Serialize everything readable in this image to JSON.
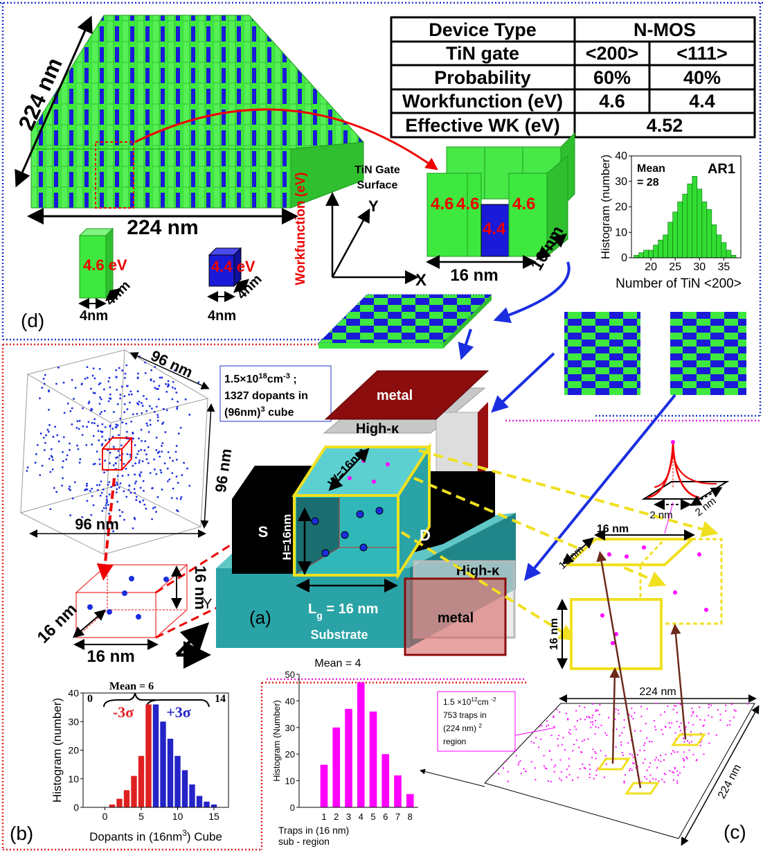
{
  "table": {
    "rows": [
      [
        "Device Type",
        "N-MOS"
      ],
      [
        "TiN gate",
        "<200>",
        "<111>"
      ],
      [
        "Probability",
        "60%",
        "40%"
      ],
      [
        "Workfunction (eV)",
        "4.6",
        "4.4"
      ],
      [
        "Effective WK (eV)",
        "4.52"
      ]
    ]
  },
  "labels": {
    "d": {
      "label": "(d)",
      "array_x": "224  nm",
      "array_y": "224  nm",
      "green_wf": "4.6 eV",
      "blue_wf": "4.4 eV",
      "cell_size": [
        "4nm",
        "4nm",
        "4nm",
        "4nm"
      ],
      "gate_surface": [
        "TiN Gate",
        "Surface"
      ],
      "axis_x": "X",
      "axis_y": "Y",
      "axis_z": "Workfunction (eV)",
      "cell_values": [
        "4.6",
        "4.6",
        "4.6",
        "4.4"
      ],
      "cube_size": [
        "16  nm",
        "16  nm"
      ]
    },
    "b": {
      "label": "(b)",
      "box_size": [
        "96 nm",
        "96 nm",
        "96 nm"
      ],
      "density": [
        [
          "1.5×10",
          "18",
          "cm",
          "-3",
          " ;"
        ],
        [
          "1327 dopants in"
        ],
        [
          "(96nm)",
          "3",
          " cube"
        ]
      ],
      "cube_size": [
        "16 nm",
        "16 nm",
        "16  nm"
      ],
      "axis": "Y"
    },
    "a": {
      "label": "(a)",
      "metal": [
        "metal",
        "metal"
      ],
      "high_k": [
        "High-κ",
        "High-κ"
      ],
      "source": "S",
      "drain": "D",
      "width": "W=16nm",
      "height": "H=16nm",
      "gate_length": [
        "L",
        "g",
        " = 16 nm"
      ],
      "substrate": "Substrate"
    },
    "c": {
      "label": "(c)",
      "plane_size": [
        "16 nm",
        "16  nm",
        "16 nm"
      ],
      "peak_size": [
        "2 nm",
        "2 nm"
      ],
      "region_size": [
        "224  nm",
        "224  nm"
      ],
      "density": [
        [
          "1.5 ×10",
          "12",
          "cm ",
          "-2"
        ],
        [
          "753 traps in"
        ],
        [
          "(224 nm) ",
          "2"
        ],
        [
          "region"
        ]
      ]
    }
  },
  "chart_data": [
    {
      "type": "histogram",
      "title": "AR1",
      "annotation": [
        "Mean",
        "= 28"
      ],
      "xlabel": "Number of TiN <200>",
      "ylabel": "Histogram (number)",
      "bins": [
        16.5,
        17.5,
        18.5,
        19.5,
        20.5,
        21.5,
        22.5,
        23.5,
        24.5,
        25.5,
        26.5,
        27.5,
        28.5,
        29.5,
        30.5,
        31.5,
        32.5,
        33.5,
        34.5,
        35.5,
        36.5,
        37.5
      ],
      "values": [
        1,
        2,
        3,
        3,
        5,
        7,
        9,
        14,
        18,
        22,
        25,
        29,
        32,
        27,
        22,
        19,
        13,
        9,
        6,
        3,
        1
      ],
      "color": "#33dd33",
      "xlim": [
        16,
        38.5
      ],
      "xticks": [
        20,
        25,
        30,
        35
      ],
      "ylim": [
        0,
        40
      ],
      "yticks": [
        0,
        10,
        20,
        30,
        40
      ]
    },
    {
      "type": "bar",
      "annotations": [
        "Mean = 6",
        "0",
        "14"
      ],
      "xlabel": [
        "Dopants in (16nm",
        "3",
        ") Cube"
      ],
      "ylabel": "Histogram (number)",
      "x": [
        1,
        2,
        3,
        4,
        5,
        6,
        7,
        8,
        9,
        10,
        11,
        12,
        13,
        14,
        15
      ],
      "series": [
        {
          "name": "-3σ",
          "color": "#e02020",
          "values": [
            1,
            3,
            6,
            11,
            18,
            36,
            null,
            null,
            null,
            null,
            null,
            null,
            null,
            null,
            null
          ]
        },
        {
          "name": "+3σ",
          "color": "#2424c8",
          "values": [
            null,
            null,
            null,
            null,
            null,
            null,
            36,
            30,
            24,
            18,
            13,
            8,
            4,
            2,
            1
          ]
        }
      ],
      "xlim": [
        -3,
        17
      ],
      "xticks": [
        0,
        5,
        10,
        15
      ],
      "ylim": [
        0,
        40
      ],
      "yticks": [
        0,
        10,
        20,
        30,
        40
      ]
    },
    {
      "type": "column",
      "title": "Mean = 4",
      "ylabel": "Histogram (Number)",
      "xlabel": [
        "Traps in (16 nm)",
        "sub    - region"
      ],
      "categories": [
        "1",
        "2",
        "3",
        "4",
        "5",
        "6",
        "7",
        "8"
      ],
      "values": [
        16,
        30,
        37,
        47,
        36,
        20,
        12,
        5
      ],
      "color": "#ff00ff",
      "ylim": [
        0,
        50
      ],
      "yticks": [
        0,
        10,
        20,
        30,
        40,
        50
      ]
    }
  ]
}
